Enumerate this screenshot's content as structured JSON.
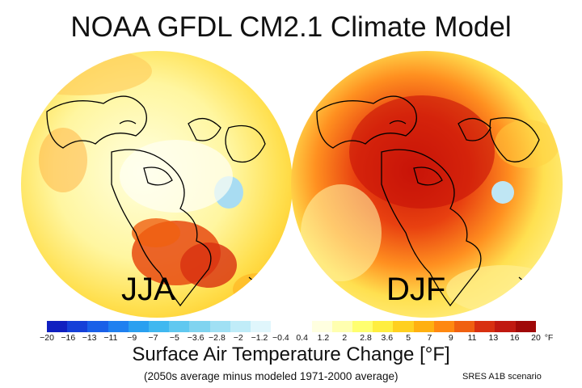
{
  "title": "NOAA GFDL CM2.1 Climate Model",
  "panels": [
    {
      "season": "JJA"
    },
    {
      "season": "DJF"
    }
  ],
  "legend": {
    "ticks": [
      "−20",
      "−16",
      "−13",
      "−11",
      "−9",
      "−7",
      "−5",
      "−3.6",
      "−2.8",
      "−2",
      "−1.2",
      "−0.4",
      "0.4",
      "1.2",
      "2",
      "2.8",
      "3.6",
      "5",
      "7",
      "9",
      "11",
      "13",
      "16",
      "20"
    ],
    "unit": "°F",
    "colors": [
      "#1020c0",
      "#1540d8",
      "#1a60e8",
      "#1f80f0",
      "#2aa0f0",
      "#40b8f0",
      "#60c8f0",
      "#80d4f0",
      "#a0e0f4",
      "#c0ecf8",
      "#e0f6fc",
      "#ffffff",
      "#ffffff",
      "#ffffe0",
      "#ffffb0",
      "#ffff70",
      "#ffee40",
      "#ffd020",
      "#ffb010",
      "#ff8810",
      "#f06010",
      "#d83010",
      "#c01810",
      "#a00808"
    ],
    "title": "Surface Air Temperature Change [°F]",
    "subtitle": "(2050s average minus modeled 1971-2000 average)",
    "scenario": "SRES A1B scenario"
  }
}
